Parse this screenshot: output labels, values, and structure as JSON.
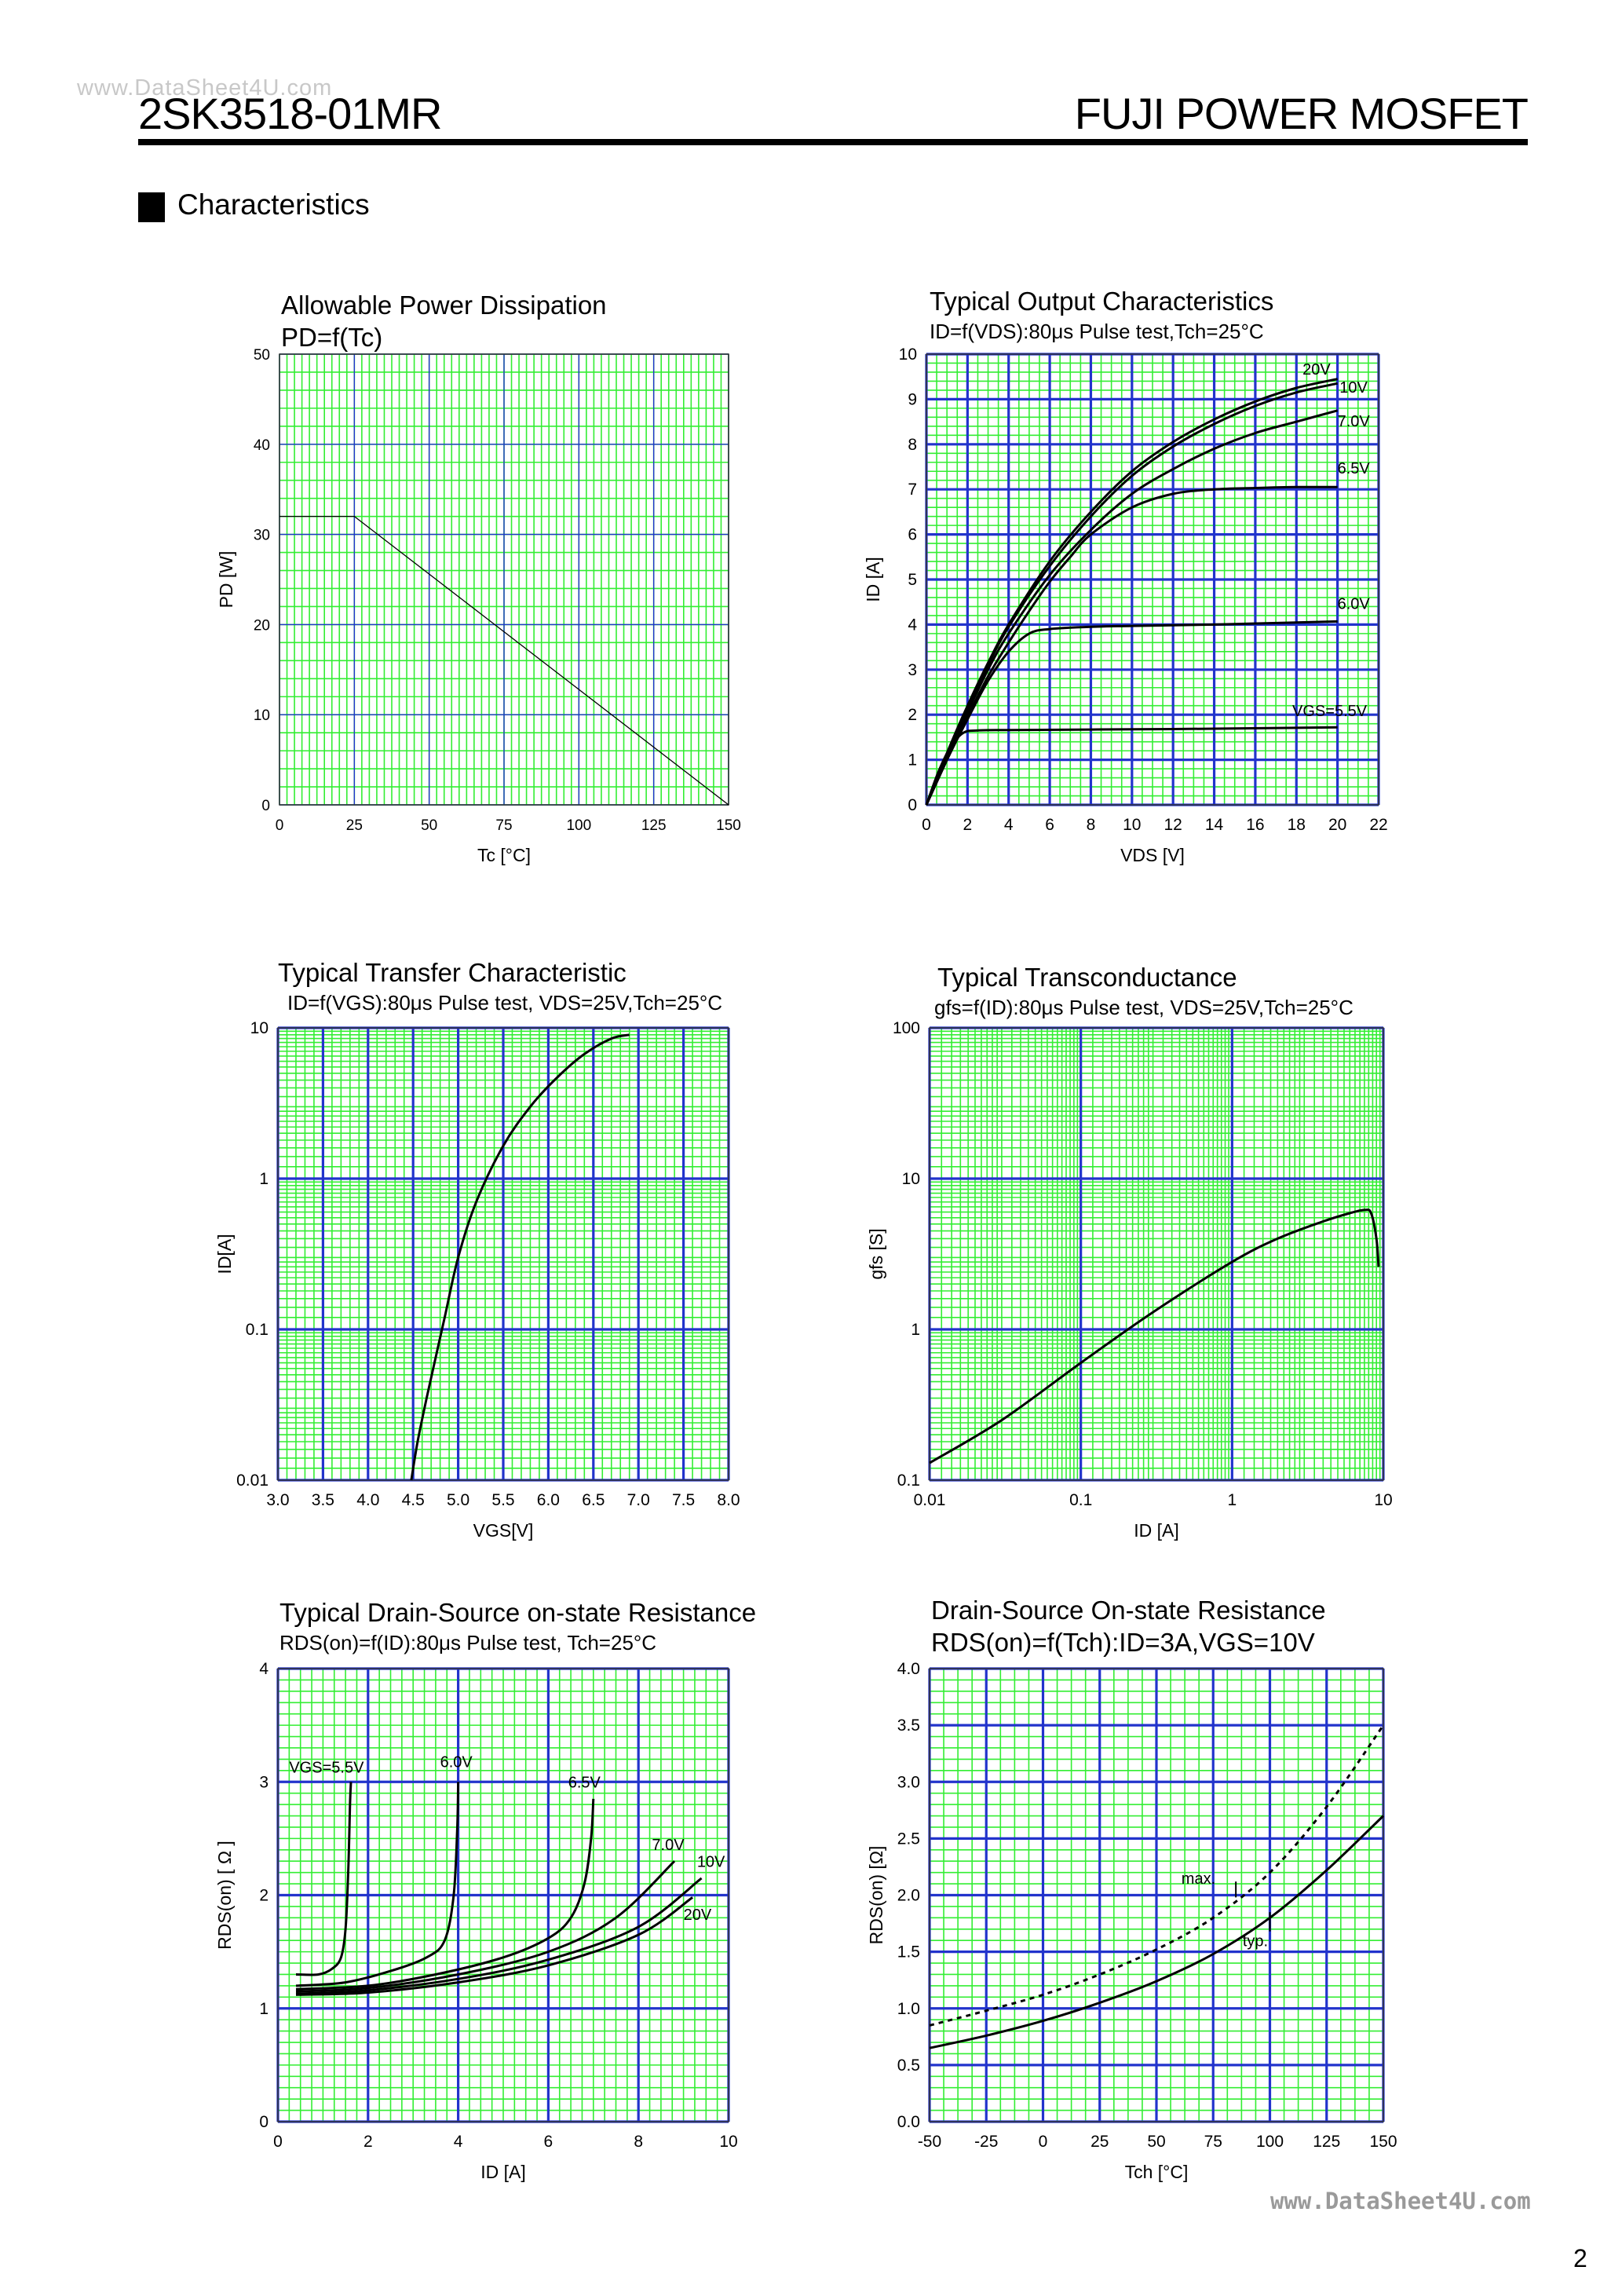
{
  "header": {
    "watermark_top": "www.DataSheet4U.com",
    "part_number": "2SK3518-01MR",
    "brand": "FUJI POWER MOSFET",
    "section_title": "Characteristics"
  },
  "footer": {
    "watermark_bottom": "www.DataSheet4U.com",
    "page_number": "2"
  },
  "colors": {
    "grid_minor": "#33ee33",
    "grid_major": "#2233cc",
    "curve": "#000000"
  },
  "chart_data": [
    {
      "id": "pd",
      "type": "line",
      "title": "Allowable Power Dissipation",
      "subtitle": "PD=f(Tc)",
      "xlabel": "Tc [°C]",
      "ylabel": "PD [W]",
      "xlim": [
        0,
        150
      ],
      "ylim": [
        0,
        50
      ],
      "xticks": [
        0,
        25,
        50,
        75,
        100,
        125,
        150
      ],
      "xtick_labels": [
        "0",
        "25",
        "50",
        "75",
        "100",
        "125",
        "150"
      ],
      "yticks": [
        0,
        10,
        20,
        30,
        40,
        50
      ],
      "ytick_labels": [
        "0",
        "10",
        "20",
        "30",
        "40",
        "50"
      ],
      "series": [
        {
          "name": "PD",
          "x": [
            0,
            25,
            150
          ],
          "y": [
            32,
            32,
            0
          ]
        }
      ]
    },
    {
      "id": "output",
      "type": "line",
      "title": "Typical Output Characteristics",
      "subtitle": "ID=f(VDS):80μs Pulse test,Tch=25°C",
      "xlabel": "VDS [V]",
      "ylabel": "ID [A]",
      "xlim": [
        0,
        22
      ],
      "ylim": [
        0,
        10
      ],
      "xticks": [
        0,
        2,
        4,
        6,
        8,
        10,
        12,
        14,
        16,
        18,
        20,
        22
      ],
      "xtick_labels": [
        "0",
        "2",
        "4",
        "6",
        "8",
        "10",
        "12",
        "14",
        "16",
        "18",
        "20",
        "22"
      ],
      "yticks": [
        0,
        1,
        2,
        3,
        4,
        5,
        6,
        7,
        8,
        9,
        10
      ],
      "ytick_labels": [
        "0",
        "1",
        "2",
        "3",
        "4",
        "5",
        "6",
        "7",
        "8",
        "9",
        "10"
      ],
      "series": [
        {
          "name": "20V",
          "x": [
            0,
            1,
            2,
            3,
            4,
            6,
            8,
            10,
            12,
            14,
            16,
            18,
            20
          ],
          "y": [
            0,
            1.15,
            2.2,
            3.15,
            4.0,
            5.4,
            6.5,
            7.4,
            8.05,
            8.55,
            8.95,
            9.25,
            9.45
          ]
        },
        {
          "name": "10V",
          "x": [
            0,
            1,
            2,
            3,
            4,
            6,
            8,
            10,
            12,
            14,
            16,
            18,
            20
          ],
          "y": [
            0,
            1.1,
            2.15,
            3.1,
            3.95,
            5.3,
            6.4,
            7.3,
            7.95,
            8.45,
            8.85,
            9.15,
            9.35
          ]
        },
        {
          "name": "7.0V",
          "x": [
            0,
            1,
            2,
            3,
            4,
            6,
            8,
            10,
            12,
            14,
            16,
            18,
            20
          ],
          "y": [
            0,
            1.05,
            2.05,
            3.0,
            3.8,
            5.1,
            6.1,
            6.9,
            7.45,
            7.9,
            8.25,
            8.5,
            8.75
          ]
        },
        {
          "name": "6.5V",
          "x": [
            0,
            1,
            2,
            3,
            4,
            5,
            6,
            7,
            8,
            10,
            12,
            14,
            16,
            18,
            20
          ],
          "y": [
            0,
            1.0,
            1.95,
            2.85,
            3.6,
            4.3,
            4.95,
            5.5,
            6.0,
            6.6,
            6.9,
            7.0,
            7.03,
            7.05,
            7.05
          ]
        },
        {
          "name": "6.0V",
          "x": [
            0,
            1,
            2,
            3,
            4,
            5,
            6,
            8,
            10,
            14,
            20
          ],
          "y": [
            0,
            1.0,
            1.9,
            2.75,
            3.4,
            3.8,
            3.9,
            3.95,
            3.97,
            4.0,
            4.07
          ]
        },
        {
          "name": "VGS=5.5V",
          "x": [
            0,
            0.6,
            1.2,
            1.8,
            2.5,
            4,
            8,
            14,
            20
          ],
          "y": [
            0,
            0.75,
            1.3,
            1.6,
            1.65,
            1.66,
            1.67,
            1.69,
            1.72
          ]
        }
      ]
    },
    {
      "id": "transfer",
      "type": "line",
      "title": "Typical Transfer Characteristic",
      "subtitle": "ID=f(VGS):80μs Pulse test, VDS=25V,Tch=25°C",
      "xlabel": "VGS[V]",
      "ylabel": "ID[A]",
      "xlim": [
        3.0,
        8.0
      ],
      "ylim": [
        0.01,
        10
      ],
      "yscale": "log",
      "xticks": [
        3.0,
        3.5,
        4.0,
        4.5,
        5.0,
        5.5,
        6.0,
        6.5,
        7.0,
        7.5,
        8.0
      ],
      "xtick_labels": [
        "3.0",
        "3.5",
        "4.0",
        "4.5",
        "5.0",
        "5.5",
        "6.0",
        "6.5",
        "7.0",
        "7.5",
        "8.0"
      ],
      "yticks": [
        0.01,
        0.1,
        1,
        10
      ],
      "ytick_labels": [
        "0.01",
        "0.1",
        "1",
        "10"
      ],
      "series": [
        {
          "name": "ID",
          "x": [
            4.48,
            4.55,
            4.65,
            4.75,
            4.85,
            5.0,
            5.2,
            5.5,
            5.8,
            6.1,
            6.4,
            6.7,
            6.9
          ],
          "y": [
            0.01,
            0.018,
            0.035,
            0.065,
            0.12,
            0.3,
            0.7,
            1.65,
            3.0,
            4.7,
            6.7,
            8.5,
            9.0
          ]
        }
      ]
    },
    {
      "id": "gfs",
      "type": "line",
      "title": "Typical Transconductance",
      "subtitle": "gfs=f(ID):80μs Pulse test, VDS=25V,Tch=25°C",
      "xlabel": "ID [A]",
      "ylabel": "gfs [S]",
      "xlim": [
        0.01,
        10
      ],
      "ylim": [
        0.1,
        100
      ],
      "xscale": "log",
      "yscale": "log",
      "xticks": [
        0.01,
        0.1,
        1,
        10
      ],
      "xtick_labels": [
        "0.01",
        "0.1",
        "1",
        "10"
      ],
      "yticks": [
        0.1,
        1,
        10,
        100
      ],
      "ytick_labels": [
        "0.1",
        "1",
        "10",
        "100"
      ],
      "series": [
        {
          "name": "gfs",
          "x": [
            0.01,
            0.03,
            0.1,
            0.3,
            1,
            2,
            4,
            6,
            7.5,
            8.3,
            9,
            9.3
          ],
          "y": [
            0.13,
            0.25,
            0.6,
            1.3,
            2.8,
            4.0,
            5.2,
            5.9,
            6.2,
            5.9,
            4.0,
            2.6
          ]
        }
      ]
    },
    {
      "id": "rds_id",
      "type": "line",
      "title": "Typical Drain-Source on-state Resistance",
      "subtitle": "RDS(on)=f(ID):80μs Pulse test, Tch=25°C",
      "xlabel": "ID [A]",
      "ylabel": "RDS(on) [ Ω ]",
      "xlim": [
        0,
        10
      ],
      "ylim": [
        0,
        4
      ],
      "xticks": [
        0,
        2,
        4,
        6,
        8,
        10
      ],
      "xtick_labels": [
        "0",
        "2",
        "4",
        "6",
        "8",
        "10"
      ],
      "yticks": [
        0,
        1,
        2,
        3,
        4
      ],
      "ytick_labels": [
        "0",
        "1",
        "2",
        "3",
        "4"
      ],
      "series": [
        {
          "name": "VGS=5.5V",
          "x": [
            0.4,
            0.9,
            1.2,
            1.4,
            1.5,
            1.56,
            1.6,
            1.62
          ],
          "y": [
            1.3,
            1.3,
            1.35,
            1.45,
            1.7,
            2.2,
            2.8,
            3.0
          ]
        },
        {
          "name": "6.0V",
          "x": [
            0.4,
            1.5,
            2.5,
            3.3,
            3.7,
            3.9,
            3.98,
            4.0
          ],
          "y": [
            1.2,
            1.23,
            1.33,
            1.45,
            1.6,
            2.0,
            2.6,
            3.0
          ]
        },
        {
          "name": "6.5V",
          "x": [
            0.4,
            2,
            3.5,
            5,
            6,
            6.5,
            6.8,
            6.95,
            7.0
          ],
          "y": [
            1.17,
            1.2,
            1.3,
            1.45,
            1.62,
            1.8,
            2.1,
            2.5,
            2.85
          ]
        },
        {
          "name": "7.0V",
          "x": [
            0.4,
            2,
            4,
            6,
            7.5,
            8.8
          ],
          "y": [
            1.15,
            1.18,
            1.3,
            1.5,
            1.8,
            2.3
          ]
        },
        {
          "name": "10V",
          "x": [
            0.4,
            2,
            4,
            6,
            8,
            9.4
          ],
          "y": [
            1.13,
            1.16,
            1.26,
            1.43,
            1.72,
            2.15
          ]
        },
        {
          "name": "20V",
          "x": [
            0.4,
            2,
            4,
            6,
            8,
            9.2
          ],
          "y": [
            1.12,
            1.14,
            1.23,
            1.38,
            1.65,
            1.98
          ]
        }
      ]
    },
    {
      "id": "rds_tch",
      "type": "line",
      "title": "Drain-Source On-state Resistance",
      "subtitle": "RDS(on)=f(Tch):ID=3A,VGS=10V",
      "xlabel": "Tch [°C]",
      "ylabel": "RDS(on) [Ω]",
      "xlim": [
        -50,
        150
      ],
      "ylim": [
        0,
        4.0
      ],
      "xticks": [
        -50,
        -25,
        0,
        25,
        50,
        75,
        100,
        125,
        150
      ],
      "xtick_labels": [
        "-50",
        "-25",
        "0",
        "25",
        "50",
        "75",
        "100",
        "125",
        "150"
      ],
      "yticks": [
        0,
        0.5,
        1.0,
        1.5,
        2.0,
        2.5,
        3.0,
        3.5,
        4.0
      ],
      "ytick_labels": [
        "0.0",
        "0.5",
        "1.0",
        "1.5",
        "2.0",
        "2.5",
        "3.0",
        "3.5",
        "4.0"
      ],
      "series": [
        {
          "name": "max.",
          "dashed": true,
          "x": [
            -50,
            -25,
            0,
            25,
            50,
            75,
            100,
            125,
            150
          ],
          "y": [
            0.85,
            0.98,
            1.12,
            1.3,
            1.52,
            1.8,
            2.2,
            2.78,
            3.5
          ]
        },
        {
          "name": "typ.",
          "dashed": false,
          "x": [
            -50,
            -25,
            0,
            25,
            50,
            75,
            100,
            125,
            150
          ],
          "y": [
            0.65,
            0.76,
            0.89,
            1.05,
            1.24,
            1.48,
            1.8,
            2.22,
            2.7
          ]
        }
      ]
    }
  ]
}
